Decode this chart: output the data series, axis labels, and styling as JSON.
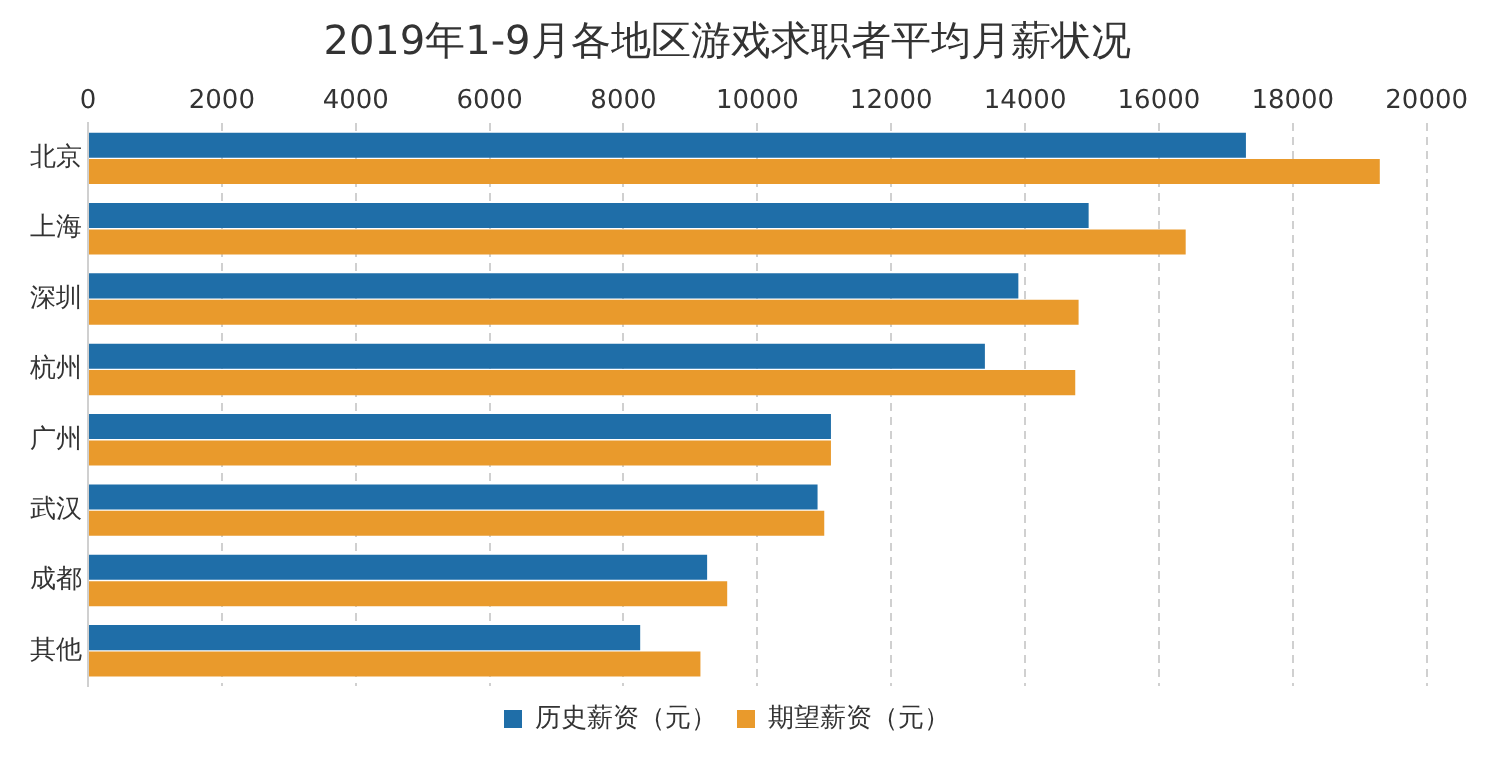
{
  "chart_data": {
    "type": "bar",
    "orientation": "horizontal",
    "title": "2019年1-9月各地区游戏求职者平均月薪状况",
    "categories": [
      "北京",
      "上海",
      "深圳",
      "杭州",
      "广州",
      "武汉",
      "成都",
      "其他"
    ],
    "series": [
      {
        "name": "历史薪资（元）",
        "color": "#1f6ea8",
        "values": [
          17300,
          14950,
          13900,
          13400,
          11100,
          10900,
          9250,
          8250
        ]
      },
      {
        "name": "期望薪资（元）",
        "color": "#e99a2c",
        "values": [
          19300,
          16400,
          14800,
          14750,
          11100,
          11000,
          9550,
          9150
        ]
      }
    ],
    "xlim": [
      0,
      20000
    ],
    "xticks": [
      0,
      2000,
      4000,
      6000,
      8000,
      10000,
      12000,
      14000,
      16000,
      18000,
      20000
    ],
    "grid": "x",
    "legend": "bottom"
  }
}
